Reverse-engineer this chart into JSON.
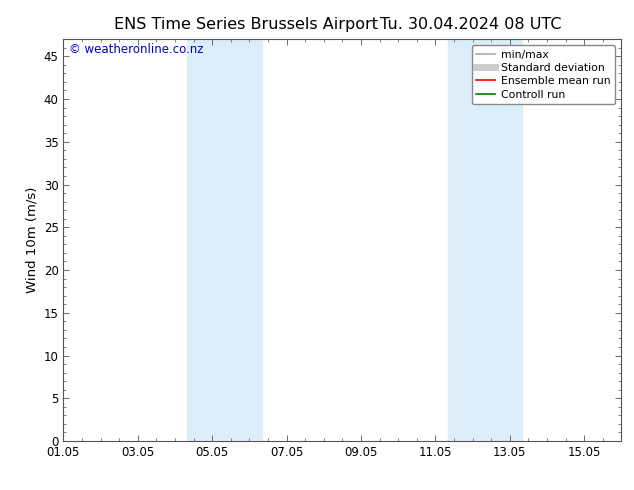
{
  "title_left": "ENS Time Series Brussels Airport",
  "title_right": "Tu. 30.04.2024 08 UTC",
  "ylabel": "Wind 10m (m/s)",
  "ylim": [
    0,
    47
  ],
  "yticks": [
    0,
    5,
    10,
    15,
    20,
    25,
    30,
    35,
    40,
    45
  ],
  "xlim": [
    0,
    15
  ],
  "xtick_labels": [
    "01.05",
    "03.05",
    "05.05",
    "07.05",
    "09.05",
    "11.05",
    "13.05",
    "15.05"
  ],
  "xtick_positions": [
    0,
    2,
    4,
    6,
    8,
    10,
    12,
    14
  ],
  "shaded_bands": [
    {
      "x_start": 3.33,
      "x_end": 5.33,
      "color": "#dceef9"
    },
    {
      "x_start": 10.33,
      "x_end": 12.33,
      "color": "#dceef9"
    }
  ],
  "background_color": "#ffffff",
  "plot_bg_color": "#ffffff",
  "watermark_text": "© weatheronline.co.nz",
  "watermark_color": "#0000cc",
  "legend_items": [
    {
      "label": "min/max",
      "color": "#aaaaaa",
      "lw": 1.2
    },
    {
      "label": "Standard deviation",
      "color": "#cccccc",
      "lw": 5
    },
    {
      "label": "Ensemble mean run",
      "color": "#ff0000",
      "lw": 1.2
    },
    {
      "label": "Controll run",
      "color": "#008000",
      "lw": 1.2
    }
  ],
  "title_fontsize": 11.5,
  "ylabel_fontsize": 9.5,
  "tick_fontsize": 8.5,
  "legend_fontsize": 7.8,
  "watermark_fontsize": 8.5
}
